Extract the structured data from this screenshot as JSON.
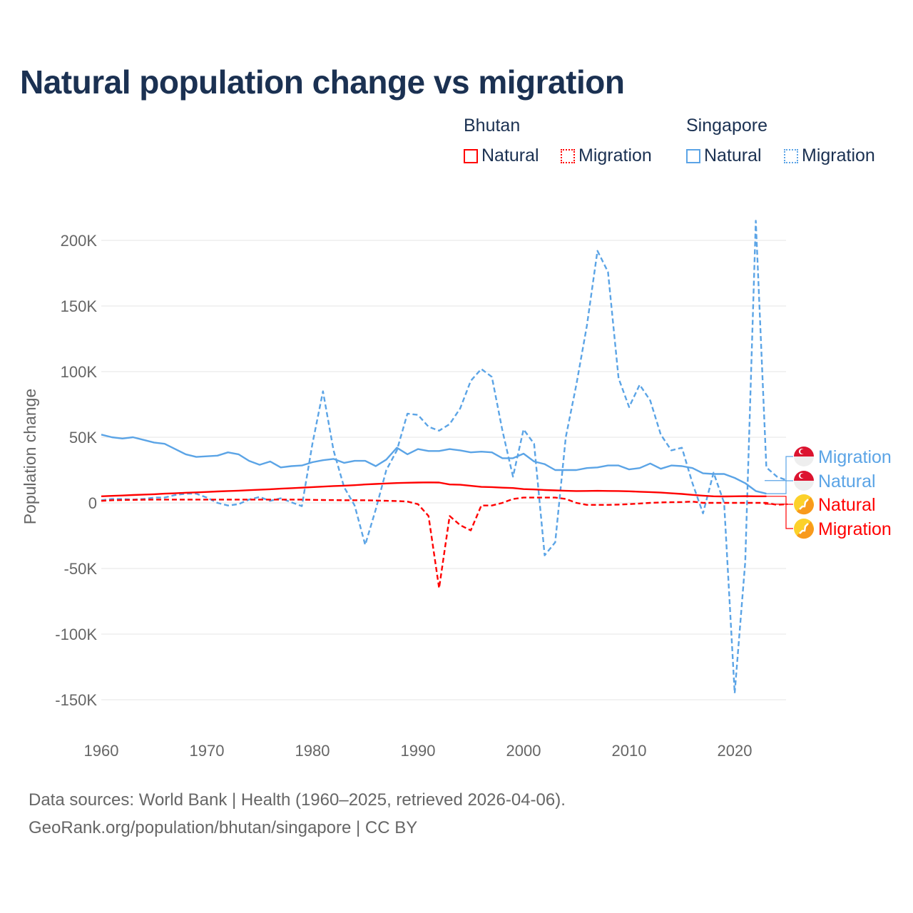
{
  "title": "Natural population change vs migration",
  "legend": {
    "groups": [
      {
        "name": "Bhutan",
        "items": [
          {
            "label": "Natural",
            "style": "solid"
          },
          {
            "label": "Migration",
            "style": "dotted"
          }
        ],
        "color": "#ff0000"
      },
      {
        "name": "Singapore",
        "items": [
          {
            "label": "Natural",
            "style": "solid"
          },
          {
            "label": "Migration",
            "style": "dotted"
          }
        ],
        "color": "#5ba4e6"
      }
    ]
  },
  "end_labels": [
    {
      "label": "Migration",
      "country": "Singapore",
      "color": "#5ba4e6",
      "flag": "singapore-flag"
    },
    {
      "label": "Natural",
      "country": "Singapore",
      "color": "#5ba4e6",
      "flag": "singapore-flag"
    },
    {
      "label": "Natural",
      "country": "Bhutan",
      "color": "#ff0000",
      "flag": "bhutan-flag"
    },
    {
      "label": "Migration",
      "country": "Bhutan",
      "color": "#ff0000",
      "flag": "bhutan-flag"
    }
  ],
  "source": {
    "line1": "Data sources: World Bank | Health (1960–2025, retrieved 2026-04-06).",
    "line2": "GeoRank.org/population/bhutan/singapore | CC BY"
  },
  "chart_data": {
    "type": "line",
    "title": "Natural population change vs migration",
    "xlabel": "",
    "ylabel": "Population change",
    "xlim": [
      1960,
      2025
    ],
    "ylim": [
      -170000,
      215000
    ],
    "grid": true,
    "legend_position": "top-right",
    "x_ticks": [
      1960,
      1970,
      1980,
      1990,
      2000,
      2010,
      2020
    ],
    "x_tick_labels": [
      "1960",
      "1970",
      "1980",
      "1990",
      "2000",
      "2010",
      "2020"
    ],
    "y_ticks": [
      200000,
      150000,
      100000,
      50000,
      0,
      -50000,
      -100000,
      -150000
    ],
    "y_tick_labels": [
      "200K",
      "150K",
      "100K",
      "50K",
      "0",
      "-50K",
      "-100K",
      "-150K"
    ],
    "series": [
      {
        "name": "Singapore Natural",
        "country": "Singapore",
        "kind": "Natural",
        "color": "#5ba4e6",
        "dash": false,
        "start": 1960,
        "values": [
          52000,
          50000,
          49000,
          50000,
          48000,
          46000,
          45000,
          41000,
          37000,
          35000,
          35500,
          36000,
          38500,
          37000,
          32000,
          29000,
          31500,
          27000,
          28000,
          28500,
          31000,
          32500,
          33500,
          30500,
          32000,
          32000,
          28000,
          33000,
          42000,
          37000,
          41000,
          39500,
          39500,
          41000,
          40000,
          38500,
          39000,
          38500,
          34000,
          34000,
          37500,
          31500,
          29500,
          25000,
          25000,
          25000,
          26500,
          27000,
          28500,
          28500,
          25500,
          26500,
          30000,
          26000,
          28500,
          28000,
          26500,
          22500,
          22000,
          22000,
          19000,
          15000,
          9000,
          7000
        ]
      },
      {
        "name": "Singapore Migration",
        "country": "Singapore",
        "kind": "Migration",
        "color": "#5ba4e6",
        "dash": true,
        "start": 1960,
        "values": [
          2000,
          3000,
          3000,
          2500,
          3000,
          4000,
          4000,
          6000,
          7000,
          7000,
          4000,
          0,
          -2000,
          -1000,
          2500,
          4500,
          1500,
          3500,
          500,
          -2500,
          45000,
          85000,
          40000,
          12000,
          -2000,
          -32000,
          -5000,
          25000,
          40000,
          68000,
          67000,
          58000,
          55000,
          60000,
          72000,
          93000,
          102000,
          96000,
          55000,
          20000,
          56000,
          45000,
          -40000,
          -30000,
          50000,
          90000,
          135000,
          192000,
          176000,
          95000,
          73000,
          90000,
          78000,
          52000,
          40000,
          42000,
          15000,
          -8000,
          23000,
          0,
          -145000,
          -45000,
          215000,
          27000,
          20000,
          17000
        ]
      },
      {
        "name": "Bhutan Natural",
        "country": "Bhutan",
        "kind": "Natural",
        "color": "#ff0000",
        "dash": false,
        "start": 1960,
        "values": [
          5000,
          5300,
          5600,
          6000,
          6300,
          6600,
          7000,
          7300,
          7700,
          8000,
          8300,
          8700,
          9000,
          9300,
          9700,
          10000,
          10400,
          10800,
          11200,
          11600,
          12000,
          12400,
          12800,
          13100,
          13500,
          14000,
          14400,
          14800,
          15100,
          15300,
          15500,
          15600,
          15500,
          14000,
          13800,
          13000,
          12200,
          12000,
          11600,
          11300,
          10500,
          10200,
          9800,
          9500,
          9200,
          9000,
          9100,
          9200,
          9100,
          9000,
          8800,
          8500,
          8200,
          7800,
          7300,
          6800,
          6100,
          5500,
          5000,
          4900,
          5000,
          5100,
          5000,
          5000
        ]
      },
      {
        "name": "Bhutan Migration",
        "country": "Bhutan",
        "kind": "Migration",
        "color": "#ff0000",
        "dash": true,
        "start": 1960,
        "values": [
          1500,
          2000,
          2200,
          2300,
          2400,
          2500,
          2500,
          2500,
          2500,
          2500,
          2500,
          2500,
          2500,
          2500,
          2500,
          2500,
          2500,
          2500,
          2500,
          2500,
          2300,
          2200,
          2100,
          2000,
          2000,
          2000,
          1800,
          1600,
          1400,
          1000,
          -1000,
          -10000,
          -65000,
          -10000,
          -17000,
          -21000,
          -2000,
          -2000,
          0,
          3000,
          4000,
          4000,
          4000,
          4000,
          3000,
          0,
          -1500,
          -1500,
          -1500,
          -1300,
          -1000,
          -500,
          0,
          300,
          500,
          600,
          1000,
          0,
          0,
          0,
          0,
          0,
          0,
          0,
          -1500,
          -1000
        ]
      }
    ]
  }
}
